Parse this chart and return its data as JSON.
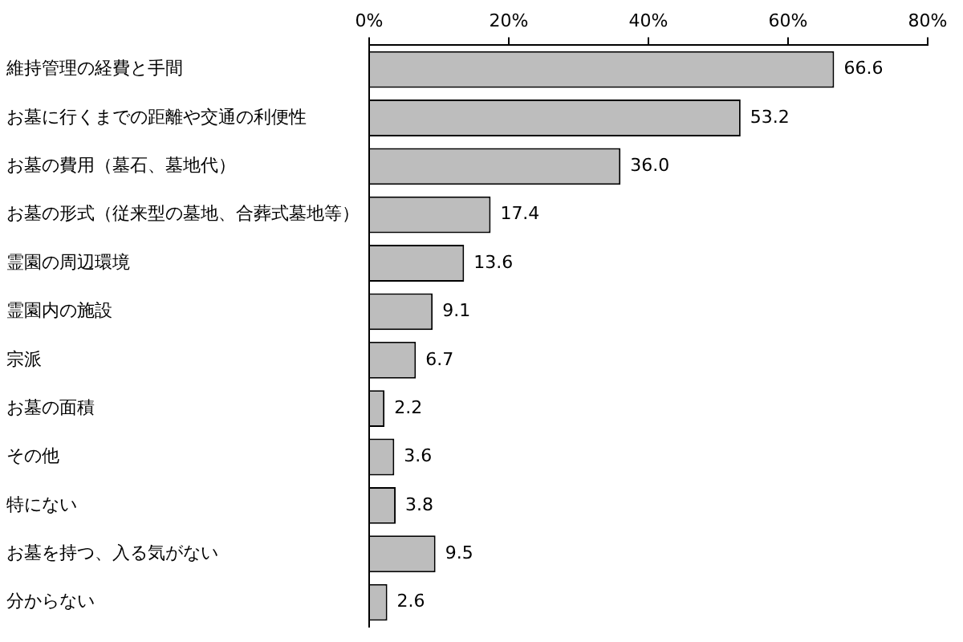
{
  "chart_data": {
    "type": "bar",
    "orientation": "horizontal",
    "categories": [
      "維持管理の経費と手間",
      "お墓に行くまでの距離や交通の利便性",
      "お墓の費用（墓石、墓地代）",
      "お墓の形式（従来型の墓地、合葬式墓地等）",
      "霊園の周辺環境",
      "霊園内の施設",
      "宗派",
      "お墓の面積",
      "その他",
      "特にない",
      "お墓を持つ、入る気がない",
      "分からない"
    ],
    "values": [
      66.6,
      53.2,
      36.0,
      17.4,
      13.6,
      9.1,
      6.7,
      2.2,
      3.6,
      3.8,
      9.5,
      2.6
    ],
    "value_labels": [
      "66.6",
      "53.2",
      "36.0",
      "17.4",
      "13.6",
      "9.1",
      "6.7",
      "2.2",
      "3.6",
      "3.8",
      "9.5",
      "2.6"
    ],
    "color": "#bdbdbd",
    "xlim": [
      0,
      80
    ],
    "xticks": [
      {
        "value": 0,
        "label": "0%"
      },
      {
        "value": 20,
        "label": "20%"
      },
      {
        "value": 40,
        "label": "40%"
      },
      {
        "value": 60,
        "label": "60%"
      },
      {
        "value": 80,
        "label": "80%"
      }
    ],
    "grid": false,
    "legend": false
  }
}
